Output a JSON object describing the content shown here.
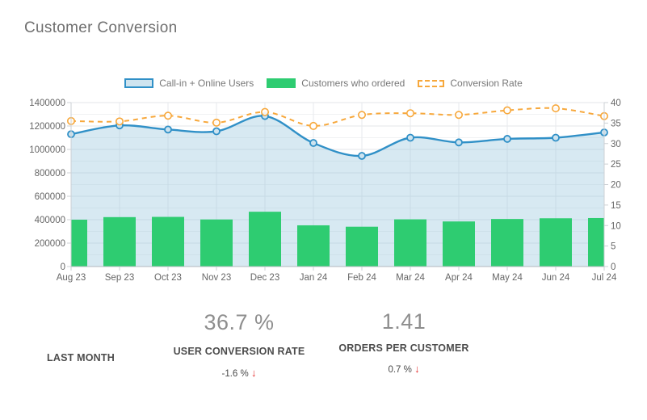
{
  "header": {
    "title": "Customer Conversion"
  },
  "legend": [
    {
      "label": "Call-in + Online Users",
      "series": "users"
    },
    {
      "label": "Customers who ordered",
      "series": "orders"
    },
    {
      "label": "Conversion Rate",
      "series": "rate"
    }
  ],
  "chart_data": {
    "type": "combo",
    "title": "Customer Conversion",
    "legend_position": "top",
    "grid": true,
    "categories": [
      "Aug 23",
      "Sep 23",
      "Oct 23",
      "Nov 23",
      "Dec 23",
      "Jan 24",
      "Feb 24",
      "Mar 24",
      "Apr 24",
      "May 24",
      "Jun 24",
      "Jul 24"
    ],
    "series": [
      {
        "name": "Call-in + Online Users",
        "type": "line-area",
        "axis": "left",
        "values": [
          1130000,
          1205000,
          1170000,
          1155000,
          1285000,
          1055000,
          945000,
          1100000,
          1060000,
          1090000,
          1100000,
          1145000
        ]
      },
      {
        "name": "Customers who ordered",
        "type": "bar",
        "axis": "left",
        "values": [
          400000,
          422000,
          424000,
          402000,
          468000,
          352000,
          340000,
          403000,
          385000,
          406000,
          412000,
          414000
        ]
      },
      {
        "name": "Conversion Rate",
        "type": "dashed-line",
        "axis": "right",
        "values": [
          35.5,
          35.4,
          36.8,
          35.1,
          37.7,
          34.3,
          37.0,
          37.4,
          37.0,
          38.1,
          38.6,
          36.7
        ]
      }
    ],
    "left_axis": {
      "min": 0,
      "max": 1400000,
      "step": 200000,
      "minor_step": 100000,
      "ticks": [
        0,
        200000,
        400000,
        600000,
        800000,
        1000000,
        1200000,
        1400000
      ]
    },
    "right_axis": {
      "min": 0,
      "max": 40,
      "step": 5,
      "ticks": [
        0,
        5,
        10,
        15,
        20,
        25,
        30,
        35,
        40
      ]
    }
  },
  "stats": {
    "period_label": "LAST MONTH",
    "metrics": [
      {
        "value": "36.7 %",
        "label": "USER CONVERSION RATE",
        "change": "-1.6 %",
        "arrow": "↓",
        "direction": "down"
      },
      {
        "value": "1.41",
        "label": "ORDERS PER CUSTOMER",
        "change": "0.7 %",
        "arrow": "↓",
        "direction": "down"
      }
    ]
  },
  "colors": {
    "users_line": "#3090c7",
    "users_fill": "rgba(151,197,222,0.38)",
    "users_marker_fill": "#cde3ef",
    "users_swatch_fill": "#cfe4ef",
    "orders_bar": "#2ecc71",
    "rate_line": "#f7a83c",
    "negative": "#e63434",
    "axis_text": "#666666"
  }
}
